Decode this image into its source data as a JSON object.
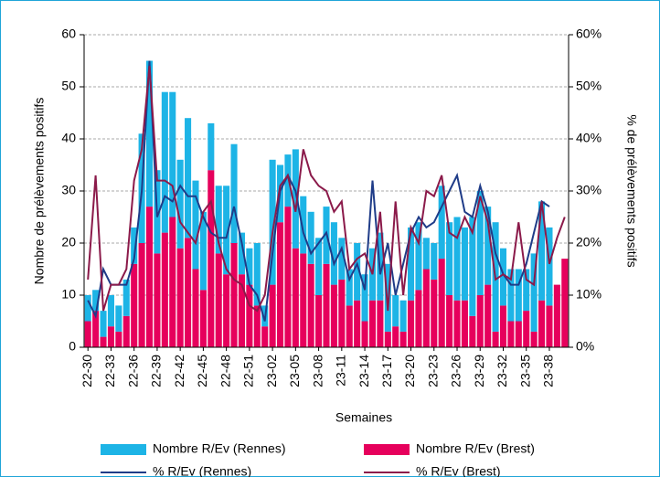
{
  "chart_data": {
    "type": "bar",
    "xlabel": "Semaines",
    "ylabel": "Nombre de prélèvements positifs",
    "y2label": "% de prélèvements positifs",
    "categories": [
      "22-30",
      null,
      null,
      "22-33",
      null,
      null,
      "22-36",
      null,
      null,
      "22-39",
      null,
      null,
      "22-42",
      null,
      null,
      "22-45",
      null,
      null,
      "22-48",
      null,
      null,
      "22-51",
      null,
      null,
      "23-02",
      null,
      null,
      "23-05",
      null,
      null,
      "23-08",
      null,
      null,
      "23-11",
      null,
      null,
      "23-14",
      null,
      null,
      "23-17",
      null,
      null,
      "23-20",
      null,
      null,
      "23-23",
      null,
      null,
      "23-26",
      null,
      null,
      "23-29",
      null,
      null,
      "23-32",
      null,
      null,
      "23-35",
      null,
      null,
      "23-38",
      null,
      null
    ],
    "ylim": [
      0,
      60
    ],
    "yticks": [
      0,
      10,
      20,
      30,
      40,
      50,
      60
    ],
    "y2lim": [
      0,
      60
    ],
    "y2ticks": [
      {
        "value": 0,
        "label": "0%"
      },
      {
        "value": 10,
        "label": "10%"
      },
      {
        "value": 20,
        "label": "20%"
      },
      {
        "value": 30,
        "label": "30%"
      },
      {
        "value": 40,
        "label": "40%"
      },
      {
        "value": 50,
        "label": "50%"
      },
      {
        "value": 60,
        "label": "60%"
      }
    ],
    "grid": true,
    "stacked": true,
    "legend": "bottom",
    "series": [
      {
        "name": "Nombre R/Ev (Brest)",
        "type": "bar",
        "color": "#e6005c",
        "values": [
          5,
          7,
          2,
          4,
          3,
          6,
          16,
          20,
          27,
          18,
          22,
          25,
          19,
          21,
          15,
          11,
          34,
          18,
          14,
          20,
          14,
          12,
          8,
          4,
          12,
          24,
          27,
          19,
          18,
          16,
          10,
          16,
          12,
          13,
          8,
          9,
          5,
          9,
          9,
          3,
          4,
          3,
          9,
          11,
          15,
          13,
          17,
          10,
          9,
          9,
          6,
          10,
          12,
          3,
          8,
          5,
          5,
          7,
          3,
          9,
          8,
          12,
          17
        ]
      },
      {
        "name": "Nombre R/Ev (Rennes)",
        "type": "bar",
        "color": "#1db4e6",
        "values": [
          5,
          4,
          5,
          6,
          5,
          7,
          7,
          21,
          28,
          16,
          27,
          24,
          17,
          23,
          17,
          15,
          9,
          13,
          17,
          19,
          8,
          7,
          12,
          4,
          24,
          11,
          10,
          19,
          11,
          10,
          11,
          11,
          12,
          8,
          7,
          11,
          9,
          10,
          13,
          13,
          6,
          6,
          14,
          13,
          6,
          7,
          14,
          14,
          16,
          14,
          19,
          20,
          15,
          21,
          11,
          10,
          10,
          8,
          15,
          19,
          15,
          0,
          0
        ]
      },
      {
        "name": "% R/Ev (Rennes)",
        "type": "line",
        "axis": "y2",
        "color": "#1f3c88",
        "values": [
          9,
          6,
          15,
          12,
          12,
          12,
          17,
          30,
          55,
          25,
          29,
          28,
          31,
          29,
          29,
          25,
          22,
          21,
          21,
          27,
          20,
          12,
          10,
          5,
          18,
          30,
          33,
          30,
          22,
          18,
          20,
          22,
          16,
          19,
          13,
          16,
          11,
          32,
          14,
          20,
          10,
          16,
          22,
          25,
          23,
          24,
          27,
          30,
          33,
          26,
          25,
          31,
          26,
          18,
          14,
          12,
          12,
          16,
          22,
          28,
          27,
          null,
          null
        ]
      },
      {
        "name": "% R/Ev (Brest)",
        "type": "line",
        "axis": "y2",
        "color": "#8b1a4a",
        "values": [
          13,
          33,
          7,
          12,
          12,
          15,
          32,
          38,
          54,
          32,
          32,
          31,
          24,
          22,
          20,
          26,
          28,
          20,
          15,
          13,
          12,
          8,
          7,
          10,
          22,
          31,
          33,
          26,
          38,
          33,
          31,
          30,
          26,
          28,
          15,
          17,
          18,
          14,
          26,
          7,
          28,
          10,
          23,
          20,
          30,
          29,
          33,
          22,
          21,
          25,
          22,
          29,
          24,
          13,
          14,
          13,
          24,
          13,
          12,
          28,
          16,
          21,
          25
        ]
      }
    ]
  }
}
